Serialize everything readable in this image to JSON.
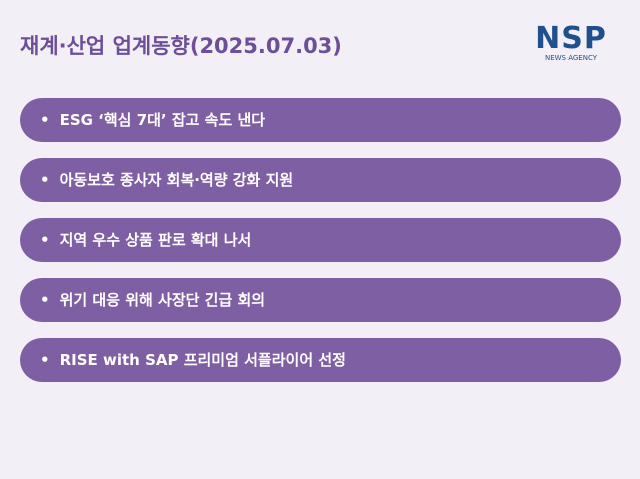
{
  "header": {
    "title": "재계·산업 업계동향(2025.07.03)",
    "logo": "NSP",
    "logo_sub": "NEWS AGENCY"
  },
  "items": [
    "ESG ‘핵심 7대’ 잡고 속도 낸다",
    "아동보호 종사자 회복·역량 강화 지원",
    "지역 우수 상품 판로 확대 나서",
    "위기 대응 위해 사장단 긴급 회의",
    "RISE with SAP 프리미엄 서플라이어 선정"
  ]
}
